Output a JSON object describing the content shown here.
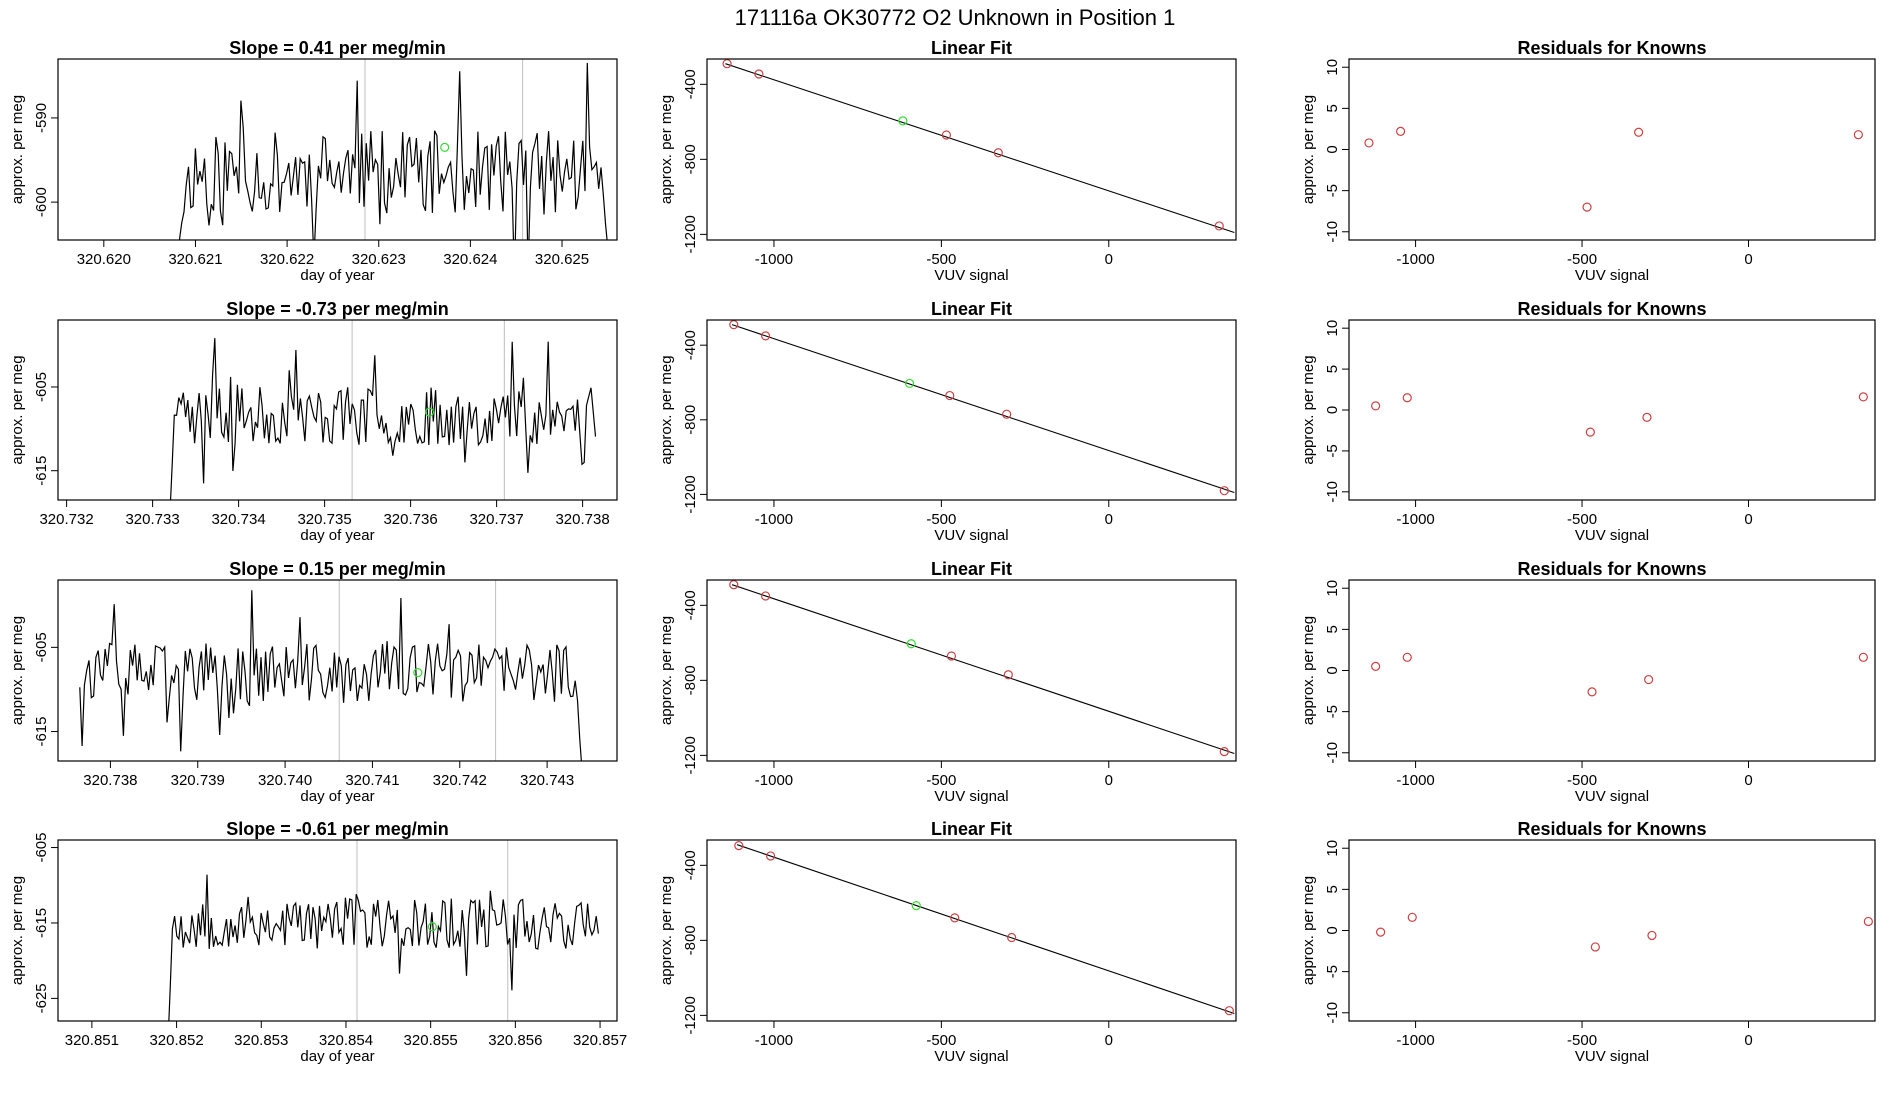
{
  "page_title": "171116a      OK30772    O2 Unknown in Position  1",
  "colors": {
    "known": "#cd4040",
    "unknown": "#33dd33",
    "line": "#000000",
    "vline": "#bfbfbf"
  },
  "chart_data": [
    {
      "type": "line",
      "title": "Slope =  0.41  per meg/min",
      "xlabel": "day of year",
      "ylabel": "approx. per meg",
      "xlim": [
        320.6195,
        320.6256
      ],
      "ylim": [
        -604.5,
        -583.0
      ],
      "xticks": [
        320.62,
        320.621,
        320.622,
        320.623,
        320.624,
        320.625
      ],
      "xtick_labels": [
        "320.620",
        "320.621",
        "320.622",
        "320.623",
        "320.624",
        "320.625"
      ],
      "yticks": [
        -600,
        -590
      ],
      "ytick_labels": [
        "-600",
        "-590"
      ],
      "vlines": [
        320.62285,
        320.62457
      ],
      "x_start": 320.6208,
      "x_end": 320.6255,
      "y_start": -606,
      "y_plateau": -596.5,
      "y_end": -606,
      "y_amp": 5,
      "rise_n": 6,
      "fall_n": 4,
      "n": 190,
      "seed": 11,
      "unknown_point": {
        "x": 320.62372,
        "y": -593.5
      }
    },
    {
      "type": "scatter",
      "title": "Linear Fit",
      "xlabel": "VUV signal",
      "ylabel": "approx. per meg",
      "xlim": [
        -1200,
        380
      ],
      "ylim": [
        -1230,
        -265
      ],
      "xticks": [
        -1000,
        -500,
        0
      ],
      "xtick_labels": [
        "-1000",
        "-500",
        "0"
      ],
      "yticks": [
        -1200,
        -800,
        -400
      ],
      "ytick_labels": [
        "-1200",
        "-800",
        "-400"
      ],
      "fit_line": {
        "x": [
          -1145,
          375
        ],
        "y": [
          -290,
          -1190
        ]
      },
      "known_x": [
        -1140,
        -1045,
        -485,
        -330,
        330
      ],
      "known_y": [
        -290,
        -345,
        -670,
        -765,
        -1155
      ],
      "unknown_x": [
        -615
      ],
      "unknown_y": [
        -595
      ]
    },
    {
      "type": "scatter",
      "title": "Residuals for Knowns",
      "xlabel": "VUV signal",
      "ylabel": "approx. per meg",
      "xlim": [
        -1200,
        380
      ],
      "ylim": [
        -11,
        11
      ],
      "xticks": [
        -1000,
        -500,
        0
      ],
      "xtick_labels": [
        "-1000",
        "-500",
        "0"
      ],
      "yticks": [
        -10,
        -5,
        0,
        5,
        10
      ],
      "ytick_labels": [
        "-10",
        "-5",
        "0",
        "5",
        "10"
      ],
      "known_x": [
        -1140,
        -1045,
        -485,
        -330,
        330
      ],
      "known_y": [
        0.8,
        2.2,
        -7.0,
        2.1,
        1.8
      ]
    },
    {
      "type": "line",
      "title": "Slope =  -0.73  per meg/min",
      "xlabel": "day of year",
      "ylabel": "approx. per meg",
      "xlim": [
        320.7319,
        320.7384
      ],
      "ylim": [
        -618.5,
        -597.0
      ],
      "xticks": [
        320.732,
        320.733,
        320.734,
        320.735,
        320.736,
        320.737,
        320.738
      ],
      "xtick_labels": [
        "320.732",
        "320.733",
        "320.734",
        "320.735",
        "320.736",
        "320.737",
        "320.738"
      ],
      "yticks": [
        -615,
        -605
      ],
      "ytick_labels": [
        "-615",
        "-605"
      ],
      "vlines": [
        320.73532,
        320.73709
      ],
      "x_start": 320.7332,
      "x_end": 320.73815,
      "y_start": -620,
      "y_plateau": -608.5,
      "y_end": -608.5,
      "y_amp": 3.5,
      "rise_n": 3,
      "fall_n": 0,
      "n": 190,
      "seed": 23,
      "unknown_point": {
        "x": 320.73622,
        "y": -608
      }
    },
    {
      "type": "scatter",
      "title": "Linear Fit",
      "xlabel": "VUV signal",
      "ylabel": "approx. per meg",
      "xlim": [
        -1200,
        380
      ],
      "ylim": [
        -1230,
        -265
      ],
      "xticks": [
        -1000,
        -500,
        0
      ],
      "xtick_labels": [
        "-1000",
        "-500",
        "0"
      ],
      "yticks": [
        -1200,
        -800,
        -400
      ],
      "ytick_labels": [
        "-1200",
        "-800",
        "-400"
      ],
      "fit_line": {
        "x": [
          -1125,
          375
        ],
        "y": [
          -290,
          -1190
        ]
      },
      "known_x": [
        -1120,
        -1025,
        -475,
        -305,
        345
      ],
      "known_y": [
        -290,
        -350,
        -670,
        -770,
        -1180
      ],
      "unknown_x": [
        -595
      ],
      "unknown_y": [
        -605
      ]
    },
    {
      "type": "scatter",
      "title": "Residuals for Knowns",
      "xlabel": "VUV signal",
      "ylabel": "approx. per meg",
      "xlim": [
        -1200,
        380
      ],
      "ylim": [
        -11,
        11
      ],
      "xticks": [
        -1000,
        -500,
        0
      ],
      "xtick_labels": [
        "-1000",
        "-500",
        "0"
      ],
      "yticks": [
        -10,
        -5,
        0,
        5,
        10
      ],
      "ytick_labels": [
        "-10",
        "-5",
        "0",
        "5",
        "10"
      ],
      "known_x": [
        -1120,
        -1025,
        -475,
        -305,
        345
      ],
      "known_y": [
        0.5,
        1.5,
        -2.7,
        -0.9,
        1.6
      ]
    },
    {
      "type": "line",
      "title": "Slope =  0.15  per meg/min",
      "xlabel": "day of year",
      "ylabel": "approx. per meg",
      "xlim": [
        320.7374,
        320.7438
      ],
      "ylim": [
        -618.5,
        -597.0
      ],
      "xticks": [
        320.738,
        320.739,
        320.74,
        320.741,
        320.742,
        320.743
      ],
      "xtick_labels": [
        "320.738",
        "320.739",
        "320.740",
        "320.741",
        "320.742",
        "320.743"
      ],
      "yticks": [
        -615,
        -605
      ],
      "ytick_labels": [
        "-615",
        "-605"
      ],
      "vlines": [
        320.74062,
        320.74241
      ],
      "x_start": 320.73765,
      "x_end": 320.7434,
      "y_start": -608.0,
      "y_plateau": -608.0,
      "y_end": -620,
      "y_amp": 3.5,
      "rise_n": 0,
      "fall_n": 4,
      "n": 220,
      "seed": 37,
      "unknown_point": {
        "x": 320.74152,
        "y": -608
      }
    },
    {
      "type": "scatter",
      "title": "Linear Fit",
      "xlabel": "VUV signal",
      "ylabel": "approx. per meg",
      "xlim": [
        -1200,
        380
      ],
      "ylim": [
        -1230,
        -265
      ],
      "xticks": [
        -1000,
        -500,
        0
      ],
      "xtick_labels": [
        "-1000",
        "-500",
        "0"
      ],
      "yticks": [
        -1200,
        -800,
        -400
      ],
      "ytick_labels": [
        "-1200",
        "-800",
        "-400"
      ],
      "fit_line": {
        "x": [
          -1125,
          375
        ],
        "y": [
          -290,
          -1190
        ]
      },
      "known_x": [
        -1120,
        -1025,
        -470,
        -300,
        345
      ],
      "known_y": [
        -290,
        -350,
        -670,
        -770,
        -1180
      ],
      "unknown_x": [
        -590
      ],
      "unknown_y": [
        -605
      ]
    },
    {
      "type": "scatter",
      "title": "Residuals for Knowns",
      "xlabel": "VUV signal",
      "ylabel": "approx. per meg",
      "xlim": [
        -1200,
        380
      ],
      "ylim": [
        -11,
        11
      ],
      "xticks": [
        -1000,
        -500,
        0
      ],
      "xtick_labels": [
        "-1000",
        "-500",
        "0"
      ],
      "yticks": [
        -10,
        -5,
        0,
        5,
        10
      ],
      "ytick_labels": [
        "-10",
        "-5",
        "0",
        "5",
        "10"
      ],
      "known_x": [
        -1120,
        -1025,
        -470,
        -300,
        345
      ],
      "known_y": [
        0.5,
        1.6,
        -2.6,
        -1.1,
        1.6
      ]
    },
    {
      "type": "line",
      "title": "Slope =  -0.61  per meg/min",
      "xlabel": "day of year",
      "ylabel": "approx. per meg",
      "xlim": [
        320.8506,
        320.8572
      ],
      "ylim": [
        -628.0,
        -604.0
      ],
      "xticks": [
        320.851,
        320.852,
        320.853,
        320.854,
        320.855,
        320.856,
        320.857
      ],
      "xtick_labels": [
        "320.851",
        "320.852",
        "320.853",
        "320.854",
        "320.855",
        "320.856",
        "320.857"
      ],
      "yticks": [
        -625,
        -615,
        -605
      ],
      "ytick_labels": [
        "-625",
        "-615",
        "-605"
      ],
      "vlines": [
        320.85413,
        320.85591
      ],
      "x_start": 320.8519,
      "x_end": 320.85698,
      "y_start": -630,
      "y_plateau": -615.0,
      "y_end": -615.0,
      "y_amp": 3.5,
      "rise_n": 3,
      "fall_n": 0,
      "n": 200,
      "seed": 53,
      "unknown_point": {
        "x": 320.85502,
        "y": -615.5
      }
    },
    {
      "type": "scatter",
      "title": "Linear Fit",
      "xlabel": "VUV signal",
      "ylabel": "approx. per meg",
      "xlim": [
        -1200,
        380
      ],
      "ylim": [
        -1230,
        -265
      ],
      "xticks": [
        -1000,
        -500,
        0
      ],
      "xtick_labels": [
        "-1000",
        "-500",
        "0"
      ],
      "yticks": [
        -1200,
        -800,
        -400
      ],
      "ytick_labels": [
        "-1200",
        "-800",
        "-400"
      ],
      "fit_line": {
        "x": [
          -1110,
          375
        ],
        "y": [
          -290,
          -1190
        ]
      },
      "known_x": [
        -1105,
        -1010,
        -460,
        -290,
        360
      ],
      "known_y": [
        -295,
        -350,
        -680,
        -785,
        -1175
      ],
      "unknown_x": [
        -575
      ],
      "unknown_y": [
        -615
      ]
    },
    {
      "type": "scatter",
      "title": "Residuals for Knowns",
      "xlabel": "VUV signal",
      "ylabel": "approx. per meg",
      "xlim": [
        -1200,
        380
      ],
      "ylim": [
        -11,
        11
      ],
      "xticks": [
        -1000,
        -500,
        0
      ],
      "xtick_labels": [
        "-1000",
        "-500",
        "0"
      ],
      "yticks": [
        -10,
        -5,
        0,
        5,
        10
      ],
      "ytick_labels": [
        "-10",
        "-5",
        "0",
        "5",
        "10"
      ],
      "known_x": [
        -1105,
        -1010,
        -460,
        -290,
        360
      ],
      "known_y": [
        -0.2,
        1.6,
        -2.0,
        -0.6,
        1.1
      ]
    }
  ]
}
